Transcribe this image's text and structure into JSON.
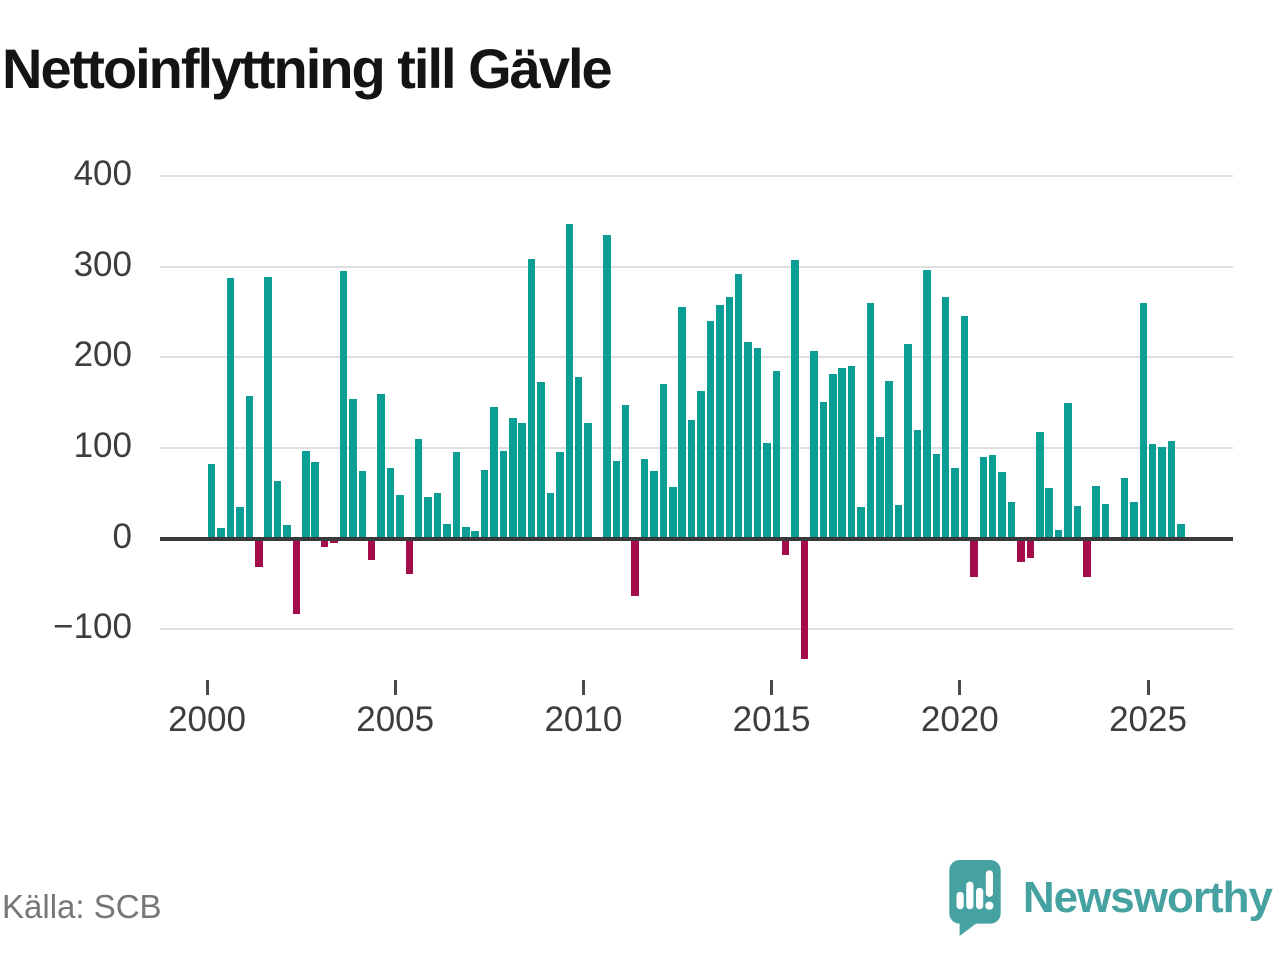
{
  "title": "Nettoinflyttning till Gävle",
  "source": "Källa: SCB",
  "brand": {
    "name": "Newsworthy",
    "color": "#46a1a1",
    "icon": "speech-bubble-bar-chart-icon"
  },
  "chart_data": {
    "type": "bar",
    "title": "Nettoinflyttning till Gävle",
    "x_start": "2000Q1",
    "x_freq": "quarterly",
    "values": [
      82,
      12,
      287,
      35,
      157,
      -32,
      289,
      63,
      15,
      -83,
      97,
      84,
      -9,
      -5,
      295,
      154,
      75,
      -24,
      160,
      78,
      48,
      -39,
      110,
      46,
      50,
      16,
      96,
      13,
      8,
      76,
      145,
      97,
      133,
      128,
      308,
      173,
      50,
      96,
      347,
      178,
      127,
      0,
      335,
      86,
      147,
      -64,
      88,
      75,
      170,
      57,
      256,
      131,
      163,
      240,
      258,
      267,
      292,
      217,
      210,
      105,
      185,
      -18,
      307,
      -133,
      207,
      151,
      182,
      188,
      190,
      35,
      260,
      112,
      174,
      37,
      215,
      120,
      296,
      93,
      267,
      78,
      245,
      -42,
      90,
      92,
      73,
      40,
      -26,
      -22,
      117,
      56,
      9,
      150,
      36,
      -43,
      58,
      38,
      0,
      67,
      40,
      260,
      104,
      101,
      108,
      16
    ],
    "xticks": [
      2000,
      2005,
      2010,
      2015,
      2020,
      2025
    ],
    "yticks": [
      400,
      300,
      200,
      100,
      0,
      -100
    ],
    "ytick_labels": [
      "400",
      "300",
      "200",
      "100",
      "0",
      "−100"
    ],
    "ylim": [
      -150,
      430
    ],
    "grid": "horizontal",
    "legend": "none",
    "positive_color": "#0a9e94",
    "negative_color": "#a30d49"
  }
}
